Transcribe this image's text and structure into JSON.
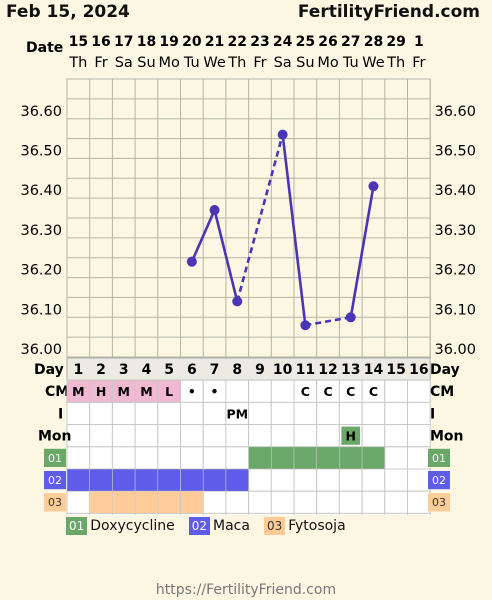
{
  "header": {
    "date": "Feb 15, 2024",
    "site": "FertilityFriend.com"
  },
  "footer": {
    "url": "https://FertilityFriend.com"
  },
  "chart_data": {
    "type": "line",
    "date_label": "Date",
    "dates": [
      "15",
      "16",
      "17",
      "18",
      "19",
      "20",
      "21",
      "22",
      "23",
      "24",
      "25",
      "26",
      "27",
      "28",
      "29",
      "1"
    ],
    "weekdays": [
      "Th",
      "Fr",
      "Sa",
      "Su",
      "Mo",
      "Tu",
      "We",
      "Th",
      "Fr",
      "Sa",
      "Su",
      "Mo",
      "Tu",
      "We",
      "Th",
      "Fr"
    ],
    "cycle_days": [
      "1",
      "2",
      "3",
      "4",
      "5",
      "6",
      "7",
      "8",
      "9",
      "10",
      "11",
      "12",
      "13",
      "14",
      "15",
      "16"
    ],
    "ylim": [
      35.98,
      36.68
    ],
    "yticks": [
      "36.60",
      "36.50",
      "36.40",
      "36.30",
      "36.20",
      "36.10",
      "36.00"
    ],
    "ytick_values": [
      36.6,
      36.5,
      36.4,
      36.3,
      36.2,
      36.1,
      36.0
    ],
    "temperatures": [
      null,
      null,
      null,
      null,
      null,
      36.22,
      36.35,
      36.12,
      null,
      36.54,
      36.06,
      null,
      36.08,
      36.41,
      null,
      null
    ],
    "dashed_gaps": [
      [
        8,
        10
      ],
      [
        11,
        13
      ]
    ],
    "line_color": "#4a35b5"
  },
  "rows": {
    "day_label": "Day",
    "cm": {
      "label": "CM",
      "values": [
        "M",
        "H",
        "M",
        "M",
        "L",
        "•",
        "•",
        "",
        "",
        "",
        "C",
        "C",
        "C",
        "C",
        "",
        ""
      ],
      "period_days": 5,
      "period_color": "#f1b8d2"
    },
    "i": {
      "label": "I",
      "values": [
        "",
        "",
        "",
        "",
        "",
        "",
        "",
        "PM",
        "",
        "",
        "",
        "",
        "",
        "",
        "",
        ""
      ]
    },
    "mon": {
      "label": "Mon",
      "values": [
        "",
        "",
        "",
        "",
        "",
        "",
        "",
        "",
        "",
        "",
        "",
        "",
        "H",
        "",
        "",
        ""
      ],
      "highlight_color": "#6aa86a"
    },
    "meds": [
      {
        "code": "01",
        "name": "Doxycycline",
        "color": "#6aa86a",
        "days": [
          9,
          10,
          11,
          12,
          13,
          14
        ]
      },
      {
        "code": "02",
        "name": "Maca",
        "color": "#5e5ce8",
        "days": [
          1,
          2,
          3,
          4,
          5,
          6,
          7,
          8
        ]
      },
      {
        "code": "03",
        "name": "Fytosoja",
        "color": "#ffcc99",
        "days": [
          2,
          3,
          4,
          5,
          6
        ]
      }
    ]
  }
}
